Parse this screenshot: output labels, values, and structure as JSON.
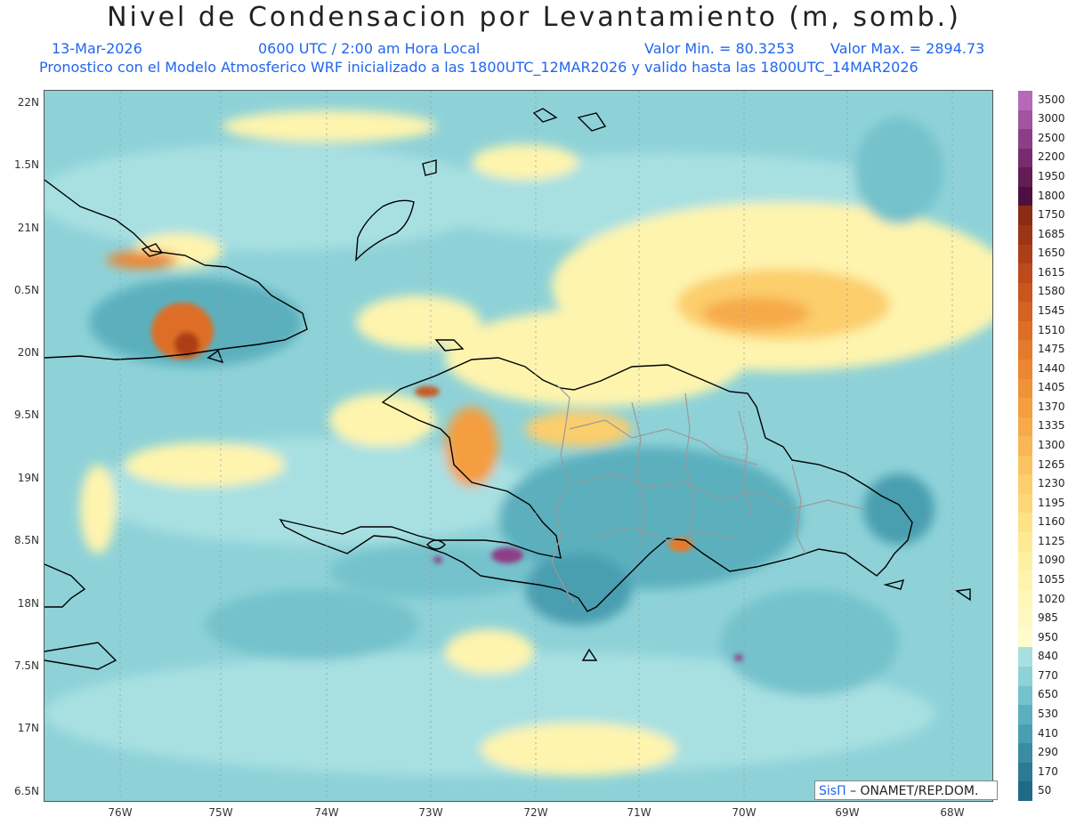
{
  "title": "Nivel de Condensacion por Levantamiento (m, somb.)",
  "header": {
    "date": "13-Mar-2026",
    "time": "0600 UTC / 2:00 am Hora Local",
    "vmin": "Valor Min. = 80.3253",
    "vmax": "Valor Max. = 2894.73",
    "forecast": "Pronostico con el Modelo Atmosferico WRF inicializado a las 1800UTC_12MAR2026 y valido hasta las  1800UTC_14MAR2026"
  },
  "axes": {
    "lat_labels": [
      "22N",
      "1.5N",
      "21N",
      "0.5N",
      "20N",
      "9.5N",
      "19N",
      "8.5N",
      "18N",
      "7.5N",
      "17N",
      "6.5N"
    ],
    "lon_labels": [
      "76W",
      "75W",
      "74W",
      "73W",
      "72W",
      "71W",
      "70W",
      "69W",
      "68W"
    ]
  },
  "colorbar": {
    "labels": [
      "3500",
      "3000",
      "2500",
      "2200",
      "1950",
      "1800",
      "1750",
      "1685",
      "1650",
      "1615",
      "1580",
      "1545",
      "1510",
      "1475",
      "1440",
      "1405",
      "1370",
      "1335",
      "1300",
      "1265",
      "1230",
      "1195",
      "1160",
      "1125",
      "1090",
      "1055",
      "1020",
      "985",
      "950",
      "840",
      "770",
      "650",
      "530",
      "410",
      "290",
      "170",
      "50"
    ],
    "colors": [
      "#b868b8",
      "#a4549e",
      "#8e3e86",
      "#782c6e",
      "#621c56",
      "#4e1040",
      "#8a2c14",
      "#9c3416",
      "#ac3e18",
      "#bc4a1c",
      "#c8561e",
      "#d46222",
      "#de6e26",
      "#e67a2c",
      "#ec8632",
      "#f09238",
      "#f49e40",
      "#f6aa4a",
      "#f8b654",
      "#fac260",
      "#fcce6c",
      "#fdd878",
      "#fee286",
      "#feea94",
      "#fef0a2",
      "#fef4ae",
      "#fef7b8",
      "#fef9c2",
      "#fefbcc",
      "#a8e0e2",
      "#8ed2d8",
      "#74c2cc",
      "#5cb0be",
      "#4a9eb0",
      "#3a8ca2",
      "#2c7a94",
      "#1f6a86"
    ]
  },
  "credit": {
    "brand": "SisΠ",
    "text": "– ONAMET/REP.DOM."
  }
}
